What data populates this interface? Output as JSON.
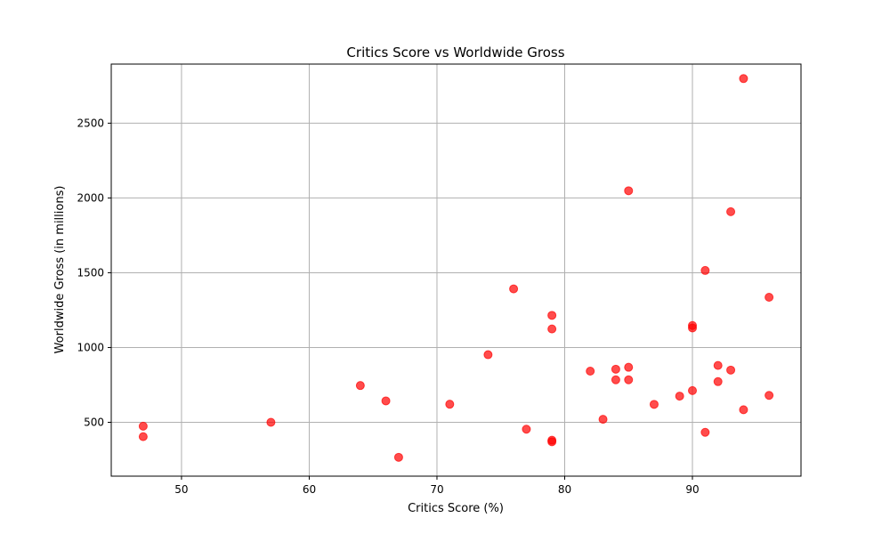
{
  "chart_data": {
    "type": "scatter",
    "title": "Critics Score vs Worldwide Gross",
    "xlabel": "Critics Score (%)",
    "ylabel": "Worldwide Gross (in millions)",
    "xlim": [
      44.5,
      98.5
    ],
    "ylim": [
      140,
      2895
    ],
    "xticks": [
      50,
      60,
      70,
      80,
      90
    ],
    "yticks": [
      500,
      1000,
      1500,
      2000,
      2500
    ],
    "grid": true,
    "marker_color": "#ff0000",
    "marker_alpha": 0.7,
    "points": [
      {
        "x": 94,
        "y": 2798
      },
      {
        "x": 85,
        "y": 2048
      },
      {
        "x": 93,
        "y": 1908
      },
      {
        "x": 91,
        "y": 1515
      },
      {
        "x": 76,
        "y": 1392
      },
      {
        "x": 96,
        "y": 1336
      },
      {
        "x": 79,
        "y": 1215
      },
      {
        "x": 90,
        "y": 1147
      },
      {
        "x": 90,
        "y": 1131
      },
      {
        "x": 79,
        "y": 1124
      },
      {
        "x": 74,
        "y": 952
      },
      {
        "x": 92,
        "y": 880
      },
      {
        "x": 85,
        "y": 868
      },
      {
        "x": 84,
        "y": 855
      },
      {
        "x": 93,
        "y": 849
      },
      {
        "x": 82,
        "y": 842
      },
      {
        "x": 84,
        "y": 784
      },
      {
        "x": 85,
        "y": 784
      },
      {
        "x": 92,
        "y": 772
      },
      {
        "x": 64,
        "y": 746
      },
      {
        "x": 90,
        "y": 712
      },
      {
        "x": 96,
        "y": 680
      },
      {
        "x": 89,
        "y": 675
      },
      {
        "x": 66,
        "y": 643
      },
      {
        "x": 71,
        "y": 621
      },
      {
        "x": 87,
        "y": 620
      },
      {
        "x": 94,
        "y": 584
      },
      {
        "x": 83,
        "y": 520
      },
      {
        "x": 57,
        "y": 500
      },
      {
        "x": 47,
        "y": 474
      },
      {
        "x": 77,
        "y": 454
      },
      {
        "x": 91,
        "y": 433
      },
      {
        "x": 47,
        "y": 404
      },
      {
        "x": 79,
        "y": 380
      },
      {
        "x": 79,
        "y": 370
      },
      {
        "x": 67,
        "y": 266
      }
    ]
  }
}
